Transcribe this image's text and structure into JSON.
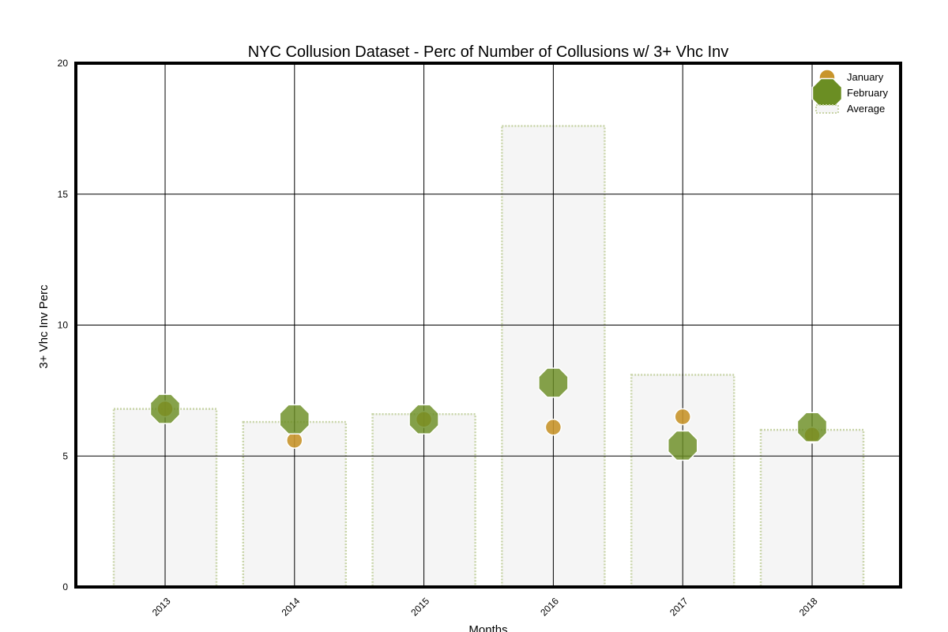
{
  "chart_data": {
    "type": "bar",
    "title": "NYC Collusion Dataset - Perc of Number of Collusions w/ 3+ Vhc Inv",
    "xlabel": "Months",
    "ylabel": "3+ Vhc Inv Perc",
    "categories": [
      "2013",
      "2014",
      "2015",
      "2016",
      "2017",
      "2018"
    ],
    "ylim": [
      0,
      20
    ],
    "yticks": [
      "0",
      "5",
      "10",
      "15",
      "20"
    ],
    "grid": true,
    "legend_position": "top-right",
    "series": [
      {
        "name": "Average",
        "kind": "bar",
        "values": [
          6.8,
          6.3,
          6.6,
          17.6,
          8.1,
          6.0
        ],
        "color": "#f5f5f5",
        "edge_color": "#c8d4a8"
      },
      {
        "name": "January",
        "kind": "marker-circle",
        "values": [
          6.8,
          5.6,
          6.4,
          6.1,
          6.5,
          5.8
        ],
        "color": "#c8952c"
      },
      {
        "name": "February",
        "kind": "marker-octagon",
        "values": [
          6.8,
          6.4,
          6.4,
          7.8,
          5.4,
          6.1
        ],
        "color": "#6b8e23"
      }
    ],
    "legend": [
      "January",
      "February",
      "Average"
    ]
  }
}
